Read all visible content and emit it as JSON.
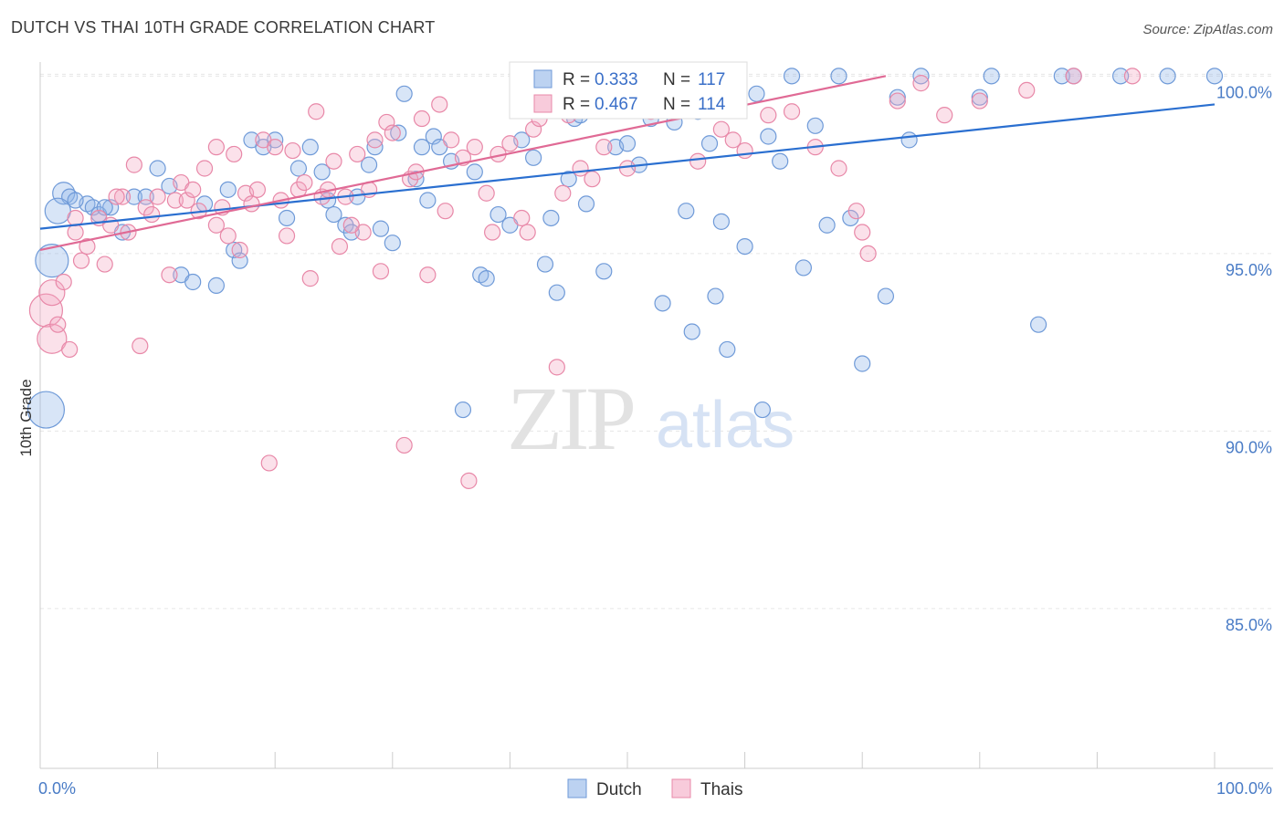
{
  "title": "DUTCH VS THAI 10TH GRADE CORRELATION CHART",
  "source": "Source: ZipAtlas.com",
  "watermark": {
    "zip": "ZIP",
    "atlas": "atlas"
  },
  "chart_data": {
    "type": "scatter",
    "xlabel": "",
    "ylabel": "10th Grade",
    "xlim": [
      0,
      100
    ],
    "ylim": [
      80.5,
      100.6
    ],
    "x_tick_labels": [
      "0.0%",
      "100.0%"
    ],
    "y_ticks": [
      85,
      90,
      95,
      100
    ],
    "y_tick_labels": [
      "85.0%",
      "90.0%",
      "95.0%",
      "100.0%"
    ],
    "legend": {
      "r_label": "R =",
      "n_label": "N =",
      "entries": [
        {
          "name": "Dutch",
          "r": "0.333",
          "n": "117",
          "color": "#8fb4e8",
          "stroke": "#6f9ad8",
          "line": "#2a6fd0"
        },
        {
          "name": "Thais",
          "r": "0.467",
          "n": "114",
          "color": "#f4a9c3",
          "stroke": "#e888a8",
          "line": "#e06a95"
        }
      ]
    },
    "series": [
      {
        "name": "Dutch",
        "trend": [
          [
            0,
            95.7
          ],
          [
            100,
            99.2
          ]
        ],
        "points": [
          [
            2,
            96.7
          ],
          [
            2.5,
            96.6
          ],
          [
            4,
            96.4
          ],
          [
            4.5,
            96.3
          ],
          [
            5,
            96.1
          ],
          [
            6,
            96.3
          ],
          [
            7,
            95.6
          ],
          [
            8,
            96.6
          ],
          [
            9,
            96.6
          ],
          [
            10,
            97.4
          ],
          [
            11,
            96.9
          ],
          [
            12,
            94.4
          ],
          [
            13,
            94.2
          ],
          [
            14,
            96.4
          ],
          [
            15,
            94.1
          ],
          [
            16,
            96.8
          ],
          [
            16.5,
            95.1
          ],
          [
            17,
            94.8
          ],
          [
            18,
            98.2
          ],
          [
            19,
            98.0
          ],
          [
            20,
            98.2
          ],
          [
            21,
            96.0
          ],
          [
            22,
            97.4
          ],
          [
            23,
            98.0
          ],
          [
            24,
            97.3
          ],
          [
            24.5,
            96.5
          ],
          [
            25,
            96.1
          ],
          [
            26,
            95.8
          ],
          [
            26.5,
            95.6
          ],
          [
            27,
            96.6
          ],
          [
            28,
            97.5
          ],
          [
            28.5,
            98.0
          ],
          [
            29,
            95.7
          ],
          [
            30,
            95.3
          ],
          [
            30.5,
            98.4
          ],
          [
            31,
            99.5
          ],
          [
            32,
            97.1
          ],
          [
            32.5,
            98.0
          ],
          [
            33,
            96.5
          ],
          [
            33.5,
            98.3
          ],
          [
            34,
            98.0
          ],
          [
            35,
            97.6
          ],
          [
            36,
            90.6
          ],
          [
            37,
            97.3
          ],
          [
            37.5,
            94.4
          ],
          [
            38,
            94.3
          ],
          [
            39,
            96.1
          ],
          [
            40,
            95.8
          ],
          [
            41,
            98.2
          ],
          [
            42,
            97.7
          ],
          [
            42.5,
            99.6
          ],
          [
            43,
            94.7
          ],
          [
            43.5,
            96.0
          ],
          [
            44,
            93.9
          ],
          [
            45,
            97.1
          ],
          [
            45.5,
            98.8
          ],
          [
            46,
            98.9
          ],
          [
            46.5,
            96.4
          ],
          [
            47,
            100.0
          ],
          [
            48,
            94.5
          ],
          [
            49,
            98.0
          ],
          [
            49.5,
            99.4
          ],
          [
            50,
            98.1
          ],
          [
            51,
            97.5
          ],
          [
            52,
            98.8
          ],
          [
            53,
            93.6
          ],
          [
            54,
            98.7
          ],
          [
            55,
            96.2
          ],
          [
            55.5,
            92.8
          ],
          [
            56,
            99.0
          ],
          [
            57,
            98.1
          ],
          [
            57.5,
            93.8
          ],
          [
            58,
            95.9
          ],
          [
            58.5,
            92.3
          ],
          [
            60,
            95.2
          ],
          [
            61,
            99.5
          ],
          [
            61.5,
            90.6
          ],
          [
            62,
            98.3
          ],
          [
            63,
            97.6
          ],
          [
            64,
            100.0
          ],
          [
            65,
            94.6
          ],
          [
            66,
            98.6
          ],
          [
            67,
            95.8
          ],
          [
            68,
            100.0
          ],
          [
            69,
            96.0
          ],
          [
            70,
            91.9
          ],
          [
            72,
            93.8
          ],
          [
            73,
            99.4
          ],
          [
            74,
            98.2
          ],
          [
            75,
            100.0
          ],
          [
            80,
            99.4
          ],
          [
            81,
            100.0
          ],
          [
            85,
            93.0
          ],
          [
            87,
            100.0
          ],
          [
            88,
            100.0
          ],
          [
            92,
            100.0
          ],
          [
            100,
            100.0
          ],
          [
            96,
            100.0
          ],
          [
            1,
            94.8
          ],
          [
            1.5,
            96.2
          ],
          [
            0.5,
            90.6
          ],
          [
            3,
            96.5
          ],
          [
            5.5,
            96.3
          ]
        ],
        "sizes": {
          "0.5,90.6": 20,
          "1,94.8": 18,
          "1.5,96.2": 14,
          "2,96.7": 12
        }
      },
      {
        "name": "Thais",
        "trend": [
          [
            0,
            95.1
          ],
          [
            72,
            100.0
          ]
        ],
        "points": [
          [
            0.5,
            93.4
          ],
          [
            1,
            92.6
          ],
          [
            1,
            93.9
          ],
          [
            1.5,
            93.0
          ],
          [
            2,
            94.2
          ],
          [
            2.5,
            92.3
          ],
          [
            3,
            95.6
          ],
          [
            3.5,
            94.8
          ],
          [
            4,
            95.2
          ],
          [
            5,
            96.0
          ],
          [
            5.5,
            94.7
          ],
          [
            6,
            95.8
          ],
          [
            7,
            96.6
          ],
          [
            7.5,
            95.6
          ],
          [
            8,
            97.5
          ],
          [
            8.5,
            92.4
          ],
          [
            9,
            96.3
          ],
          [
            10,
            96.6
          ],
          [
            11,
            94.4
          ],
          [
            11.5,
            96.5
          ],
          [
            12,
            97.0
          ],
          [
            12.5,
            96.5
          ],
          [
            13,
            96.8
          ],
          [
            14,
            97.4
          ],
          [
            15,
            98.0
          ],
          [
            15.5,
            96.3
          ],
          [
            16,
            95.5
          ],
          [
            16.5,
            97.8
          ],
          [
            17,
            95.1
          ],
          [
            17.5,
            96.7
          ],
          [
            18,
            96.4
          ],
          [
            18.5,
            96.8
          ],
          [
            19,
            98.2
          ],
          [
            19.5,
            89.1
          ],
          [
            20,
            98.0
          ],
          [
            21,
            95.5
          ],
          [
            21.5,
            97.9
          ],
          [
            22,
            96.8
          ],
          [
            22.5,
            97.0
          ],
          [
            23,
            94.3
          ],
          [
            23.5,
            99.0
          ],
          [
            24,
            96.6
          ],
          [
            25,
            97.6
          ],
          [
            25.5,
            95.2
          ],
          [
            26,
            96.6
          ],
          [
            27,
            97.8
          ],
          [
            27.5,
            95.6
          ],
          [
            28,
            96.8
          ],
          [
            28.5,
            98.2
          ],
          [
            29,
            94.5
          ],
          [
            29.5,
            98.7
          ],
          [
            30,
            98.4
          ],
          [
            31,
            89.6
          ],
          [
            31.5,
            97.1
          ],
          [
            32,
            97.3
          ],
          [
            32.5,
            98.8
          ],
          [
            33,
            94.4
          ],
          [
            34,
            99.2
          ],
          [
            34.5,
            96.2
          ],
          [
            35,
            98.2
          ],
          [
            36,
            97.7
          ],
          [
            36.5,
            88.6
          ],
          [
            37,
            98.0
          ],
          [
            38,
            96.7
          ],
          [
            38.5,
            95.6
          ],
          [
            39,
            97.8
          ],
          [
            40,
            98.1
          ],
          [
            41,
            96.0
          ],
          [
            41.5,
            95.6
          ],
          [
            42,
            98.5
          ],
          [
            42.5,
            98.8
          ],
          [
            43,
            99.8
          ],
          [
            44,
            91.8
          ],
          [
            44.5,
            96.7
          ],
          [
            45,
            98.9
          ],
          [
            46,
            97.4
          ],
          [
            46.5,
            99.3
          ],
          [
            47,
            97.1
          ],
          [
            48,
            98.0
          ],
          [
            48.5,
            100.0
          ],
          [
            49,
            99.9
          ],
          [
            50,
            97.4
          ],
          [
            50.5,
            100.0
          ],
          [
            51,
            99.5
          ],
          [
            52,
            99.0
          ],
          [
            54,
            99.5
          ],
          [
            56,
            97.6
          ],
          [
            58,
            98.5
          ],
          [
            59,
            98.2
          ],
          [
            60,
            97.9
          ],
          [
            62,
            98.9
          ],
          [
            64,
            99.0
          ],
          [
            66,
            98.0
          ],
          [
            68,
            97.4
          ],
          [
            69.5,
            96.2
          ],
          [
            70,
            95.6
          ],
          [
            70.5,
            95.0
          ],
          [
            73,
            99.3
          ],
          [
            75,
            99.8
          ],
          [
            77,
            98.9
          ],
          [
            80,
            99.3
          ],
          [
            84,
            99.6
          ],
          [
            88,
            100.0
          ],
          [
            93,
            100.0
          ],
          [
            3,
            96.0
          ],
          [
            6.5,
            96.6
          ],
          [
            9.5,
            96.1
          ],
          [
            13.5,
            96.2
          ],
          [
            15,
            95.8
          ],
          [
            20.5,
            96.5
          ],
          [
            24.5,
            96.8
          ],
          [
            26.5,
            95.8
          ]
        ],
        "sizes": {
          "0.5,93.4": 18,
          "1,92.6": 16,
          "1,93.9": 14,
          "1.5,93.0": 12
        }
      }
    ]
  }
}
